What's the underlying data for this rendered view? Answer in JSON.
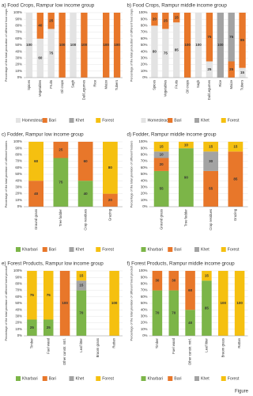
{
  "chart_data": [
    {
      "type": "bar",
      "stacked": true,
      "title": "a) Food Crops, Rampur low income group",
      "y_label": "Percentage of the total production of different food crops",
      "categories": [
        "Spices",
        "Vegetables",
        "Fruits",
        "Oil crops",
        "Sagh",
        "Dal/Legumes",
        "Rice",
        "Maize",
        "Tubers"
      ],
      "series": [
        {
          "name": "Homestead",
          "color": "#e3e3e3",
          "values": [
            100,
            60,
            75,
            null,
            100,
            null,
            null,
            null,
            null
          ]
        },
        {
          "name": "Bari",
          "color": "#e8772a",
          "values": [
            null,
            40,
            25,
            100,
            null,
            100,
            null,
            100,
            100
          ]
        },
        {
          "name": "Khet",
          "color": "#a3a3a3",
          "values": [
            null,
            null,
            null,
            null,
            null,
            null,
            null,
            null,
            null
          ]
        },
        {
          "name": "Forest",
          "color": "#f5c010",
          "values": [
            null,
            null,
            null,
            null,
            null,
            null,
            null,
            null,
            null
          ]
        }
      ],
      "ylim": [
        0,
        100
      ],
      "yticks": [
        {
          "value": 0,
          "label": "0%"
        },
        {
          "value": 10,
          "label": "10%"
        },
        {
          "value": 20,
          "label": "20%"
        },
        {
          "value": 30,
          "label": "30%"
        },
        {
          "value": 40,
          "label": "40%"
        },
        {
          "value": 50,
          "label": "50%"
        },
        {
          "value": 60,
          "label": "60%"
        },
        {
          "value": 70,
          "label": "70%"
        },
        {
          "value": 80,
          "label": "80%"
        },
        {
          "value": 90,
          "label": "90%"
        },
        {
          "value": 100,
          "label": "100%"
        }
      ]
    },
    {
      "type": "bar",
      "stacked": true,
      "title": "b) Food Crops, Rampur middle income group",
      "y_label": "Percentage of the total production of different food crops",
      "categories": [
        "Spices",
        "Vegetables",
        "Fruits",
        "Oil crops",
        "Sagh",
        "Dal/Legumes",
        "Rice",
        "Maize",
        "Tubers"
      ],
      "series": [
        {
          "name": "Homestead",
          "color": "#e3e3e3",
          "values": [
            80,
            75,
            85,
            null,
            100,
            25,
            null,
            null,
            15
          ]
        },
        {
          "name": "Bari",
          "color": "#e8772a",
          "values": [
            20,
            25,
            15,
            100,
            null,
            75,
            null,
            25,
            85
          ]
        },
        {
          "name": "Khet",
          "color": "#a3a3a3",
          "values": [
            null,
            null,
            null,
            null,
            null,
            null,
            100,
            75,
            null
          ]
        },
        {
          "name": "Forest",
          "color": "#f5c010",
          "values": [
            null,
            null,
            null,
            null,
            null,
            null,
            null,
            null,
            null
          ]
        }
      ],
      "ylim": [
        0,
        100
      ],
      "yticks": [
        {
          "value": 0,
          "label": "0%"
        },
        {
          "value": 10,
          "label": "10%"
        },
        {
          "value": 20,
          "label": "20%"
        },
        {
          "value": 30,
          "label": "30%"
        },
        {
          "value": 40,
          "label": "40%"
        },
        {
          "value": 50,
          "label": "50%"
        },
        {
          "value": 60,
          "label": "60%"
        },
        {
          "value": 70,
          "label": "70%"
        },
        {
          "value": 80,
          "label": "80%"
        },
        {
          "value": 90,
          "label": "90%"
        },
        {
          "value": 100,
          "label": "100%"
        }
      ]
    },
    {
      "type": "bar",
      "stacked": true,
      "title": "c) Fodder, Rampur low income group",
      "y_label": "Percentage of the total provision of different fodders",
      "categories": [
        "Ground grass",
        "Tree fodder",
        "Crop residues",
        "Grazing"
      ],
      "series": [
        {
          "name": "Kharbari",
          "color": "#7cb548",
          "values": [
            null,
            75,
            40,
            null
          ]
        },
        {
          "name": "Bari",
          "color": "#e8772a",
          "values": [
            40,
            25,
            60,
            20
          ]
        },
        {
          "name": "Khet",
          "color": "#a3a3a3",
          "values": [
            null,
            null,
            null,
            null
          ]
        },
        {
          "name": "Forest",
          "color": "#f5c010",
          "values": [
            60,
            null,
            null,
            80
          ]
        }
      ],
      "ylim": [
        0,
        100
      ],
      "yticks": [
        {
          "value": 0,
          "label": "0%"
        },
        {
          "value": 10,
          "label": "10%"
        },
        {
          "value": 20,
          "label": "20%"
        },
        {
          "value": 30,
          "label": "30%"
        },
        {
          "value": 40,
          "label": "40%"
        },
        {
          "value": 50,
          "label": "50%"
        },
        {
          "value": 60,
          "label": "60%"
        },
        {
          "value": 70,
          "label": "70%"
        },
        {
          "value": 80,
          "label": "80%"
        },
        {
          "value": 90,
          "label": "90%"
        },
        {
          "value": 100,
          "label": "100%"
        }
      ]
    },
    {
      "type": "bar",
      "stacked": true,
      "title": "d) Fodder, Rampur middle income group",
      "y_label": "Percentage of the total provision of different fodders",
      "categories": [
        "Ground grass",
        "Tree fodder",
        "Crop residues",
        "Grazing"
      ],
      "series": [
        {
          "name": "Kharbari",
          "color": "#7cb548",
          "values": [
            55,
            90,
            null,
            null
          ]
        },
        {
          "name": "Bari",
          "color": "#e8772a",
          "values": [
            20,
            null,
            55,
            85
          ]
        },
        {
          "name": "Khet",
          "color": "#a3a3a3",
          "values": [
            10,
            null,
            30,
            null
          ]
        },
        {
          "name": "Forest",
          "color": "#f5c010",
          "values": [
            15,
            10,
            15,
            15
          ]
        }
      ],
      "ylim": [
        0,
        100
      ],
      "yticks": [
        {
          "value": 0,
          "label": "0%"
        },
        {
          "value": 10,
          "label": "10%"
        },
        {
          "value": 20,
          "label": "20%"
        },
        {
          "value": 30,
          "label": "30%"
        },
        {
          "value": 40,
          "label": "40%"
        },
        {
          "value": 50,
          "label": "50%"
        },
        {
          "value": 60,
          "label": "60%"
        },
        {
          "value": 70,
          "label": "70%"
        },
        {
          "value": 80,
          "label": "80%"
        },
        {
          "value": 90,
          "label": "90%"
        },
        {
          "value": 100,
          "label": "100%"
        }
      ]
    },
    {
      "type": "bar",
      "stacked": true,
      "title": "e) Forest Products, Rampur low income group",
      "y_label": "Percentage of the total provision of different forest product",
      "categories": [
        "Timber",
        "Fuel wood",
        "Other constr. mtrl.",
        "Leaf litter",
        "Broom grass",
        "Rattan"
      ],
      "series": [
        {
          "name": "Kharbari",
          "color": "#7cb548",
          "values": [
            25,
            25,
            null,
            70,
            null,
            null
          ]
        },
        {
          "name": "Bari",
          "color": "#e8772a",
          "values": [
            null,
            null,
            100,
            null,
            null,
            null
          ]
        },
        {
          "name": "Khet",
          "color": "#a3a3a3",
          "values": [
            null,
            null,
            null,
            15,
            null,
            null
          ]
        },
        {
          "name": "Forest",
          "color": "#f5c010",
          "values": [
            75,
            75,
            null,
            15,
            null,
            100
          ]
        }
      ],
      "ylim": [
        0,
        100
      ],
      "yticks": [
        {
          "value": 0,
          "label": "0%"
        },
        {
          "value": 10,
          "label": "10%"
        },
        {
          "value": 20,
          "label": "20%"
        },
        {
          "value": 30,
          "label": "30%"
        },
        {
          "value": 40,
          "label": "40%"
        },
        {
          "value": 50,
          "label": "50%"
        },
        {
          "value": 60,
          "label": "60%"
        },
        {
          "value": 70,
          "label": "70%"
        },
        {
          "value": 80,
          "label": "80%"
        },
        {
          "value": 90,
          "label": "90%"
        },
        {
          "value": 100,
          "label": "100%"
        }
      ]
    },
    {
      "type": "bar",
      "stacked": true,
      "title": "f) Forest Products, Rampur middle income group",
      "y_label": "Percentage of the total provision of different forest product",
      "categories": [
        "Timber",
        "Fuel wood",
        "Other constr. mtrl.",
        "Leaf litter",
        "Broom grass",
        "Rattan"
      ],
      "series": [
        {
          "name": "Kharbari",
          "color": "#7cb548",
          "values": [
            70,
            70,
            40,
            85,
            null,
            null
          ]
        },
        {
          "name": "Bari",
          "color": "#e8772a",
          "values": [
            30,
            30,
            60,
            null,
            null,
            null
          ]
        },
        {
          "name": "Khet",
          "color": "#a3a3a3",
          "values": [
            null,
            null,
            null,
            null,
            null,
            null
          ]
        },
        {
          "name": "Forest",
          "color": "#f5c010",
          "values": [
            null,
            null,
            null,
            15,
            100,
            100
          ]
        }
      ],
      "ylim": [
        0,
        100
      ],
      "yticks": [
        {
          "value": 0,
          "label": "0%"
        },
        {
          "value": 10,
          "label": "10%"
        },
        {
          "value": 20,
          "label": "20%"
        },
        {
          "value": 30,
          "label": "30%"
        },
        {
          "value": 40,
          "label": "40%"
        },
        {
          "value": 50,
          "label": "50%"
        },
        {
          "value": 60,
          "label": "60%"
        },
        {
          "value": 70,
          "label": "70%"
        },
        {
          "value": 80,
          "label": "80%"
        },
        {
          "value": 90,
          "label": "90%"
        },
        {
          "value": 100,
          "label": "100%"
        }
      ]
    }
  ],
  "footer": {
    "label": "Figure"
  }
}
